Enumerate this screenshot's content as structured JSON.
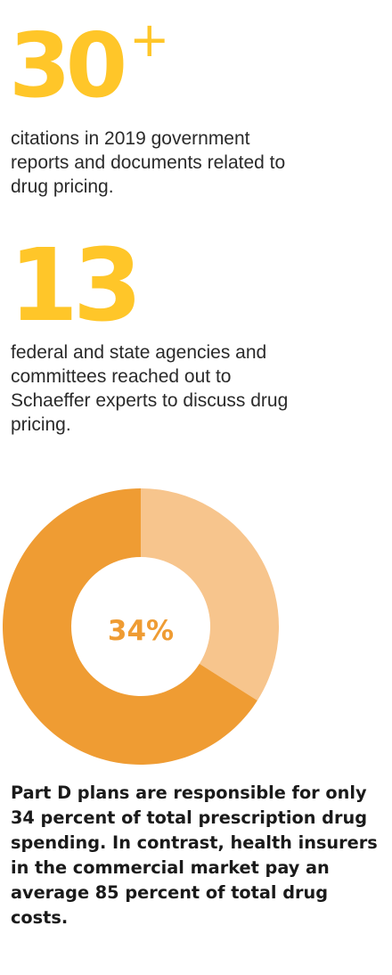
{
  "stat_1": {
    "number": "30",
    "suffix": "+",
    "text": "citations in 2019 government reports and documents related to drug pricing."
  },
  "stat_2": {
    "number": "13",
    "text": "federal and state agencies and committees reached out to Schaeffer experts to discuss drug pricing."
  },
  "colors": {
    "accent": "#ffc629",
    "donut_main": "#ef9c33",
    "donut_light": "#f7c58d",
    "center_label": "#ef9c33"
  },
  "chart_data": {
    "type": "pie",
    "donut": true,
    "center_label": "34%",
    "slices": [
      {
        "value": 34,
        "color": "#f7c58d"
      },
      {
        "value": 66,
        "color": "#ef9c33"
      }
    ]
  },
  "caption": "Part D plans are responsible for only 34 percent of total prescription drug spending. In contrast, health insurers in the commercial market pay an average 85 percent of total drug costs."
}
